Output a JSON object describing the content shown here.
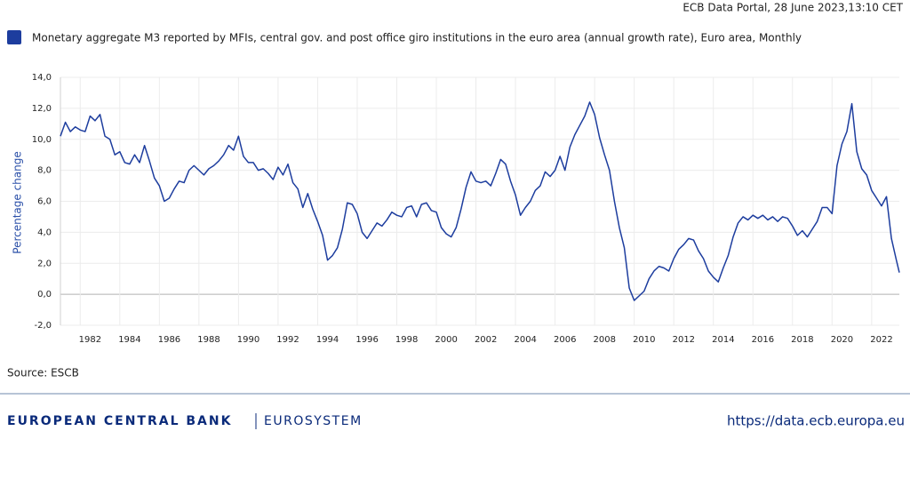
{
  "header": {
    "stamp": "ECB Data Portal, 28 June 2023,13:10 CET"
  },
  "chart_data": {
    "type": "line",
    "y_label": "Percentage change",
    "x": [
      1981.0,
      1981.25,
      1981.5,
      1981.75,
      1982.0,
      1982.25,
      1982.5,
      1982.75,
      1983.0,
      1983.25,
      1983.5,
      1983.75,
      1984.0,
      1984.25,
      1984.5,
      1984.75,
      1985.0,
      1985.25,
      1985.5,
      1985.75,
      1986.0,
      1986.25,
      1986.5,
      1986.75,
      1987.0,
      1987.25,
      1987.5,
      1987.75,
      1988.0,
      1988.25,
      1988.5,
      1988.75,
      1989.0,
      1989.25,
      1989.5,
      1989.75,
      1990.0,
      1990.25,
      1990.5,
      1990.75,
      1991.0,
      1991.25,
      1991.5,
      1991.75,
      1992.0,
      1992.25,
      1992.5,
      1992.75,
      1993.0,
      1993.25,
      1993.5,
      1993.75,
      1994.0,
      1994.25,
      1994.5,
      1994.75,
      1995.0,
      1995.25,
      1995.5,
      1995.75,
      1996.0,
      1996.25,
      1996.5,
      1996.75,
      1997.0,
      1997.25,
      1997.5,
      1997.75,
      1998.0,
      1998.25,
      1998.5,
      1998.75,
      1999.0,
      1999.25,
      1999.5,
      1999.75,
      2000.0,
      2000.25,
      2000.5,
      2000.75,
      2001.0,
      2001.25,
      2001.5,
      2001.75,
      2002.0,
      2002.25,
      2002.5,
      2002.75,
      2003.0,
      2003.25,
      2003.5,
      2003.75,
      2004.0,
      2004.25,
      2004.5,
      2004.75,
      2005.0,
      2005.25,
      2005.5,
      2005.75,
      2006.0,
      2006.25,
      2006.5,
      2006.75,
      2007.0,
      2007.25,
      2007.5,
      2007.75,
      2008.0,
      2008.25,
      2008.5,
      2008.75,
      2009.0,
      2009.25,
      2009.5,
      2009.75,
      2010.0,
      2010.25,
      2010.5,
      2010.75,
      2011.0,
      2011.25,
      2011.5,
      2011.75,
      2012.0,
      2012.25,
      2012.5,
      2012.75,
      2013.0,
      2013.25,
      2013.5,
      2013.75,
      2014.0,
      2014.25,
      2014.5,
      2014.75,
      2015.0,
      2015.25,
      2015.5,
      2015.75,
      2016.0,
      2016.25,
      2016.5,
      2016.75,
      2017.0,
      2017.25,
      2017.5,
      2017.75,
      2018.0,
      2018.25,
      2018.5,
      2018.75,
      2019.0,
      2019.25,
      2019.5,
      2019.75,
      2020.0,
      2020.25,
      2020.5,
      2020.75,
      2021.0,
      2021.25,
      2021.5,
      2021.75,
      2022.0,
      2022.25,
      2022.5,
      2022.75,
      2023.0,
      2023.25,
      2023.4
    ],
    "series": [
      {
        "name": "Monetary aggregate M3 reported by MFIs, central gov. and post office giro institutions in the euro area (annual growth rate), Euro area, Monthly",
        "color": "#1d3d9e",
        "values": [
          10.2,
          11.1,
          10.5,
          10.8,
          10.6,
          10.5,
          11.5,
          11.2,
          11.6,
          10.2,
          10.0,
          9.0,
          9.2,
          8.5,
          8.4,
          9.0,
          8.5,
          9.6,
          8.6,
          7.5,
          7.0,
          6.0,
          6.2,
          6.8,
          7.3,
          7.2,
          8.0,
          8.3,
          8.0,
          7.7,
          8.1,
          8.3,
          8.6,
          9.0,
          9.6,
          9.3,
          10.2,
          8.9,
          8.5,
          8.5,
          8.0,
          8.1,
          7.8,
          7.4,
          8.2,
          7.7,
          8.4,
          7.2,
          6.8,
          5.6,
          6.5,
          5.5,
          4.7,
          3.8,
          2.2,
          2.5,
          3.0,
          4.2,
          5.9,
          5.8,
          5.2,
          4.0,
          3.6,
          4.1,
          4.6,
          4.4,
          4.8,
          5.3,
          5.1,
          5.0,
          5.6,
          5.7,
          5.0,
          5.8,
          5.9,
          5.4,
          5.3,
          4.3,
          3.9,
          3.7,
          4.3,
          5.5,
          6.9,
          7.9,
          7.3,
          7.2,
          7.3,
          7.0,
          7.8,
          8.7,
          8.4,
          7.3,
          6.4,
          5.1,
          5.6,
          6.0,
          6.7,
          7.0,
          7.9,
          7.6,
          8.0,
          8.9,
          8.0,
          9.5,
          10.3,
          10.9,
          11.5,
          12.4,
          11.6,
          10.1,
          9.0,
          8.0,
          6.0,
          4.3,
          3.0,
          0.4,
          -0.4,
          -0.1,
          0.2,
          1.0,
          1.5,
          1.8,
          1.7,
          1.5,
          2.3,
          2.9,
          3.2,
          3.6,
          3.5,
          2.8,
          2.3,
          1.5,
          1.1,
          0.8,
          1.7,
          2.5,
          3.7,
          4.6,
          5.0,
          4.8,
          5.1,
          4.9,
          5.1,
          4.8,
          5.0,
          4.7,
          5.0,
          4.9,
          4.4,
          3.8,
          4.1,
          3.7,
          4.2,
          4.7,
          5.6,
          5.6,
          5.2,
          8.3,
          9.7,
          10.5,
          12.3,
          9.2,
          8.1,
          7.7,
          6.7,
          6.2,
          5.7,
          6.3,
          3.6,
          2.2,
          1.4
        ]
      }
    ],
    "xlim": [
      1981.0,
      2023.4
    ],
    "xticks": [
      1982,
      1984,
      1986,
      1988,
      1990,
      1992,
      1994,
      1996,
      1998,
      2000,
      2002,
      2004,
      2006,
      2008,
      2010,
      2012,
      2014,
      2016,
      2018,
      2020,
      2022
    ],
    "ylim": [
      -2,
      14
    ],
    "yticks": [
      {
        "value": -2,
        "label": "-2,0"
      },
      {
        "value": 0,
        "label": "0,0"
      },
      {
        "value": 2,
        "label": "2,0"
      },
      {
        "value": 4,
        "label": "4,0"
      },
      {
        "value": 6,
        "label": "6,0"
      },
      {
        "value": 8,
        "label": "8,0"
      },
      {
        "value": 10,
        "label": "10,0"
      },
      {
        "value": 12,
        "label": "12,0"
      },
      {
        "value": 14,
        "label": "14,0"
      }
    ],
    "grid": true
  },
  "source": "Source: ESCB",
  "footer": {
    "brand": "EUROPEAN CENTRAL BANK",
    "system": "EUROSYSTEM",
    "url": "https://data.ecb.europa.eu"
  }
}
